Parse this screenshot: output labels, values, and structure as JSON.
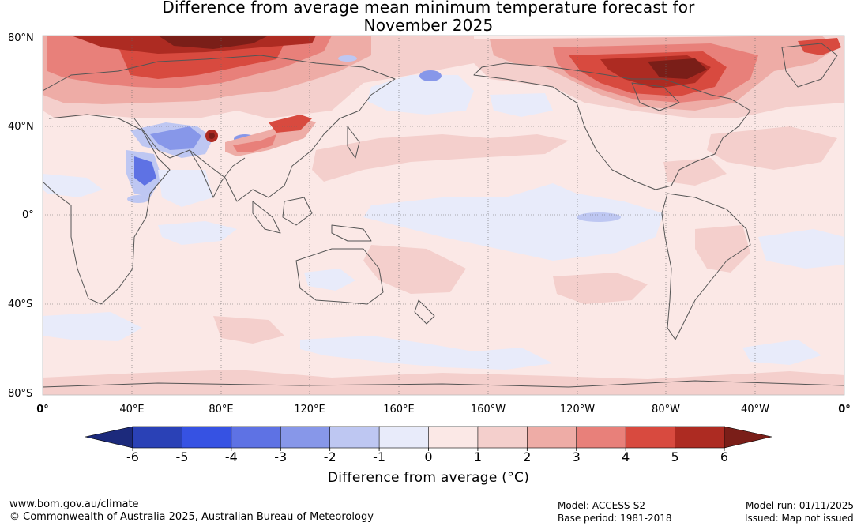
{
  "page": {
    "title_line1": "Difference from average mean minimum temperature forecast for",
    "title_line2": "November 2025"
  },
  "map": {
    "region": "Global (0° to 0° longitude, 80°S to 80°N)",
    "lat_labels": [
      "80°N",
      "40°N",
      "0°",
      "40°S",
      "80°S"
    ],
    "lon_labels": [
      "0°",
      "40°E",
      "80°E",
      "120°E",
      "160°E",
      "160°W",
      "120°W",
      "80°W",
      "40°W",
      "0°"
    ],
    "features": [
      {
        "name": "Arctic Siberia",
        "anomaly": "+5 to >6"
      },
      {
        "name": "Northern Canada / Hudson Bay",
        "anomaly": "+4 to >6"
      },
      {
        "name": "Central Asia / Himalaya",
        "anomaly": "-3 to -1"
      },
      {
        "name": "Equatorial Pacific",
        "anomaly": "-1 to 0"
      },
      {
        "name": "Southern Ocean",
        "anomaly": "-1 to +1"
      }
    ]
  },
  "legend": {
    "title": "Difference from average (°C)",
    "tick_labels": [
      "-6",
      "-5",
      "-4",
      "-3",
      "-2",
      "-1",
      "0",
      "1",
      "2",
      "3",
      "4",
      "5",
      "6"
    ],
    "colors": {
      "below_min": "#1c2a7c",
      "bins": [
        "#2a41b6",
        "#3652e3",
        "#5e72e4",
        "#8797e9",
        "#bec7f2",
        "#e8ebfa",
        "#fbe8e6",
        "#f4cfcc",
        "#eeaca6",
        "#e8807a",
        "#d84a3f",
        "#ad2b22"
      ],
      "above_max": "#7a1e18"
    }
  },
  "footer": {
    "url": "www.bom.gov.au/climate",
    "copyright": "© Commonwealth of Australia 2025, Australian Bureau of Meteorology",
    "model": "Model: ACCESS-S2",
    "base_period": "Base period: 1981-2018",
    "model_run": "Model run: 01/11/2025",
    "issued": "Issued: Map not issued"
  }
}
